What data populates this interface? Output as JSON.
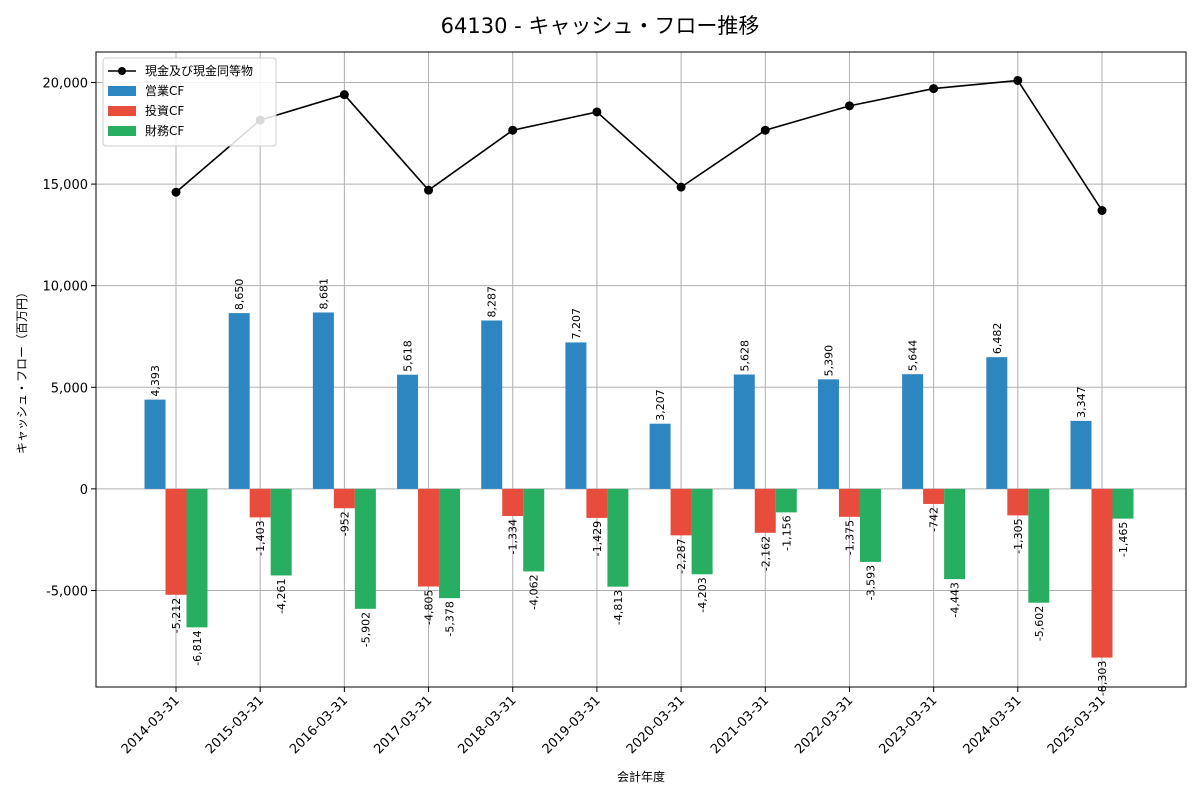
{
  "chart_data": {
    "type": "bar",
    "title": "64130 - キャッシュ・フロー推移",
    "xlabel": "会計年度",
    "ylabel": "キャッシュ・フロー（百万円）",
    "categories": [
      "2014-03-31",
      "2015-03-31",
      "2016-03-31",
      "2017-03-31",
      "2018-03-31",
      "2019-03-31",
      "2020-03-31",
      "2021-03-31",
      "2022-03-31",
      "2023-03-31",
      "2024-03-31",
      "2025-03-31"
    ],
    "series": [
      {
        "name": "営業CF",
        "kind": "bar",
        "color": "#2e86c1",
        "values": [
          4393,
          8650,
          8681,
          5618,
          8287,
          7207,
          3207,
          5628,
          5390,
          5644,
          6482,
          3347
        ]
      },
      {
        "name": "投資CF",
        "kind": "bar",
        "color": "#e74c3c",
        "values": [
          -5212,
          -1403,
          -952,
          -4805,
          -1334,
          -1429,
          -2287,
          -2162,
          -1375,
          -742,
          -1305,
          -8303
        ]
      },
      {
        "name": "財務CF",
        "kind": "bar",
        "color": "#27ae60",
        "values": [
          -6814,
          -4261,
          -5902,
          -5378,
          -4062,
          -4813,
          -4203,
          -1156,
          -3593,
          -4443,
          -5602,
          -1465
        ]
      },
      {
        "name": "現金及び現金同等物",
        "kind": "line",
        "color": "#000000",
        "values": [
          14600,
          18150,
          19400,
          14700,
          17650,
          18550,
          14850,
          17650,
          18850,
          19700,
          20100,
          13700
        ]
      }
    ],
    "yticks": [
      -5000,
      0,
      5000,
      10000,
      15000,
      20000
    ],
    "ytick_labels": [
      "-5,000",
      "0",
      "5,000",
      "10,000",
      "15,000",
      "20,000"
    ],
    "ylim": [
      -9750,
      21500
    ],
    "grid": true,
    "legend_position": "top-left"
  }
}
